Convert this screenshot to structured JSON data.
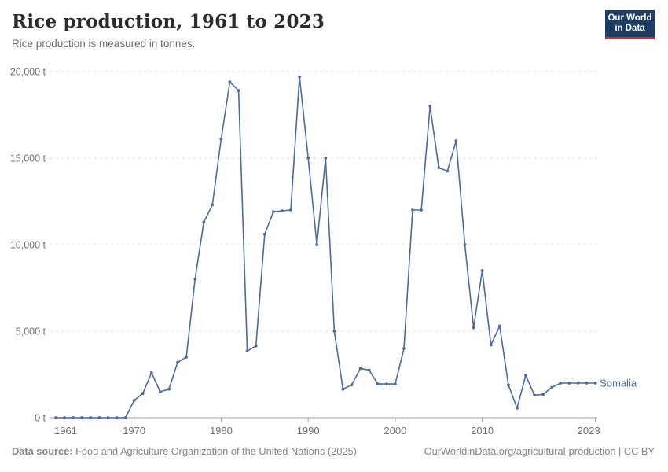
{
  "header": {
    "title": "Rice production, 1961 to 2023",
    "subtitle": "Rice production is measured in tonnes."
  },
  "logo": {
    "line1": "Our World",
    "line2": "in Data",
    "bg_color": "#1d3d63",
    "stripe_color": "#d5332e"
  },
  "footer": {
    "source_label": "Data source:",
    "source_text": " Food and Agriculture Organization of the United Nations (2025)",
    "url": "OurWorldinData.org/agricultural-production",
    "license": " | CC BY"
  },
  "chart_data": {
    "type": "line",
    "title": "Rice production, 1961 to 2023",
    "xlabel": "",
    "ylabel": "",
    "unit": "t",
    "xlim": [
      1961,
      2023
    ],
    "ylim": [
      0,
      20000
    ],
    "grid": "dashed-horizontal",
    "legend_position": "end-of-line-label",
    "y_ticks": [
      {
        "value": 0,
        "label": "0 t"
      },
      {
        "value": 5000,
        "label": "5,000 t"
      },
      {
        "value": 10000,
        "label": "10,000 t"
      },
      {
        "value": 15000,
        "label": "15,000 t"
      },
      {
        "value": 20000,
        "label": "20,000 t"
      }
    ],
    "x_ticks": [
      {
        "year": 1961,
        "label": "1961"
      },
      {
        "year": 1970,
        "label": "1970"
      },
      {
        "year": 1980,
        "label": "1980"
      },
      {
        "year": 1990,
        "label": "1990"
      },
      {
        "year": 2000,
        "label": "2000"
      },
      {
        "year": 2010,
        "label": "2010"
      },
      {
        "year": 2023,
        "label": "2023"
      }
    ],
    "years": [
      1961,
      1962,
      1963,
      1964,
      1965,
      1966,
      1967,
      1968,
      1969,
      1970,
      1971,
      1972,
      1973,
      1974,
      1975,
      1976,
      1977,
      1978,
      1979,
      1980,
      1981,
      1982,
      1983,
      1984,
      1985,
      1986,
      1987,
      1988,
      1989,
      1990,
      1991,
      1992,
      1993,
      1994,
      1995,
      1996,
      1997,
      1998,
      1999,
      2000,
      2001,
      2002,
      2003,
      2004,
      2005,
      2006,
      2007,
      2008,
      2009,
      2010,
      2011,
      2012,
      2013,
      2014,
      2015,
      2016,
      2017,
      2018,
      2019,
      2020,
      2021,
      2022,
      2023
    ],
    "series": [
      {
        "name": "Somalia",
        "color": "#4C6A9C",
        "values": [
          0,
          0,
          0,
          0,
          0,
          0,
          0,
          0,
          0,
          1000,
          1400,
          2600,
          1500,
          1650,
          3200,
          3500,
          8000,
          11300,
          12300,
          16100,
          19400,
          18900,
          3850,
          4150,
          10600,
          11900,
          11950,
          12000,
          19700,
          15000,
          10000,
          15000,
          5000,
          1650,
          1900,
          2850,
          2750,
          1950,
          1950,
          1950,
          4000,
          12000,
          12000,
          18000,
          14450,
          14250,
          16000,
          10000,
          5200,
          8500,
          4200,
          5300,
          1900,
          550,
          2450,
          1300,
          1350,
          1750,
          2000,
          2000,
          2000,
          2000,
          2000
        ]
      }
    ],
    "colors": {
      "gridline": "#e2e2e2",
      "axis": "#a5a5a5",
      "tick_label": "#6f6f6f"
    }
  }
}
